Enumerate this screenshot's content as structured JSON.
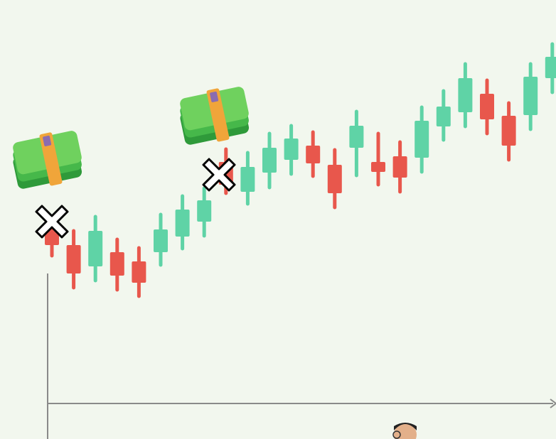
{
  "chart_data": {
    "type": "candlestick",
    "categories": [
      null,
      null,
      null,
      null,
      null,
      null,
      null,
      null,
      null,
      null,
      null,
      null,
      null,
      null,
      null,
      null,
      null,
      null,
      null,
      null,
      null,
      null,
      null,
      null
    ],
    "open": [
      243,
      223,
      193,
      213,
      200,
      213,
      235,
      256,
      340,
      298,
      325,
      343,
      363,
      336,
      360,
      340,
      348,
      346,
      390,
      410,
      436,
      405,
      406,
      458
    ],
    "high": [
      258,
      243,
      263,
      231,
      219,
      266,
      292,
      303,
      358,
      353,
      380,
      391,
      382,
      357,
      411,
      380,
      368,
      417,
      440,
      478,
      455,
      423,
      478,
      506
    ],
    "low": [
      208,
      163,
      173,
      160,
      151,
      195,
      218,
      236,
      296,
      281,
      304,
      323,
      320,
      276,
      321,
      308,
      298,
      326,
      371,
      390,
      380,
      343,
      386,
      438
    ],
    "close": [
      223,
      183,
      243,
      180,
      170,
      245,
      273,
      286,
      308,
      333,
      360,
      373,
      338,
      296,
      391,
      326,
      318,
      398,
      418,
      458,
      400,
      363,
      460,
      488
    ],
    "up_color": "#5fd3a6",
    "down_color": "#e8574c",
    "ylim": [
      0,
      568
    ]
  }
}
